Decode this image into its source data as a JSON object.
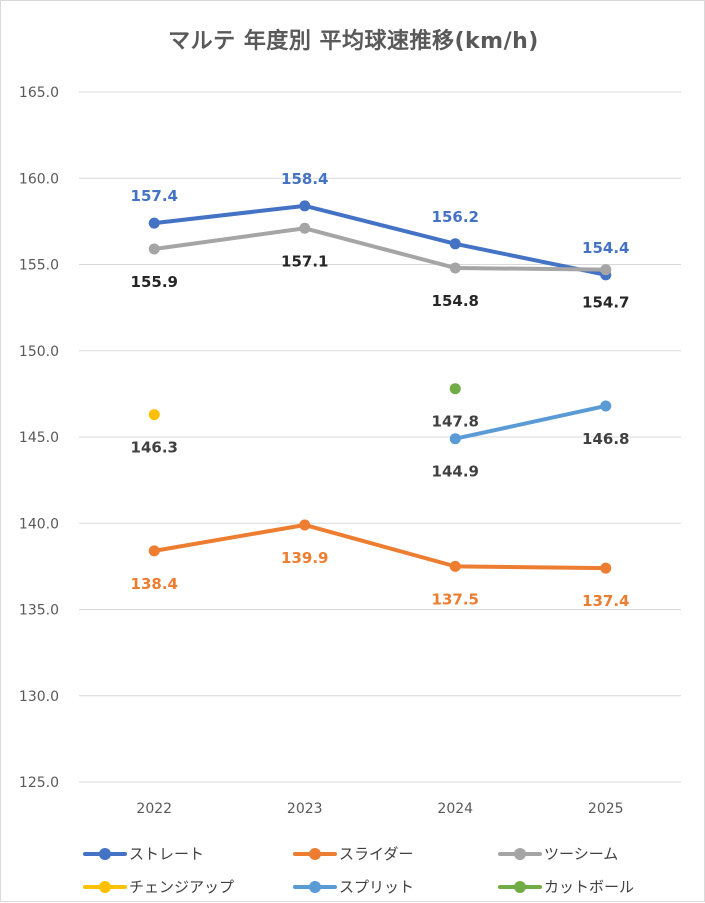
{
  "chart_data": {
    "type": "line",
    "title": "マルテ 年度別 平均球速推移(km/h)",
    "categories": [
      "2022",
      "2023",
      "2024",
      "2025"
    ],
    "ylim": [
      125.0,
      165.0
    ],
    "yticks": [
      "125.0",
      "130.0",
      "135.0",
      "140.0",
      "145.0",
      "150.0",
      "155.0",
      "160.0",
      "165.0"
    ],
    "grid": true,
    "legend_position": "bottom",
    "series": [
      {
        "name": "ストレート",
        "color": "#4472c4",
        "values": [
          157.4,
          158.4,
          156.2,
          154.4
        ],
        "labels": [
          "157.4",
          "158.4",
          "156.2",
          "154.4"
        ],
        "label_color": "#4472c4",
        "label_pos": "above"
      },
      {
        "name": "スライダー",
        "color": "#ed7d31",
        "values": [
          138.4,
          139.9,
          137.5,
          137.4
        ],
        "labels": [
          "138.4",
          "139.9",
          "137.5",
          "137.4"
        ],
        "label_color": "#ed7d31",
        "label_pos": "below"
      },
      {
        "name": "ツーシーム",
        "color": "#a5a5a5",
        "values": [
          155.9,
          157.1,
          154.8,
          154.7
        ],
        "labels": [
          "155.9",
          "157.1",
          "154.8",
          "154.7"
        ],
        "label_color": "#262626",
        "label_pos": "below"
      },
      {
        "name": "チェンジアップ",
        "color": "#ffc000",
        "values": [
          146.3,
          null,
          null,
          null
        ],
        "labels": [
          "146.3",
          "",
          "",
          ""
        ],
        "label_color": "#404040",
        "label_pos": "below"
      },
      {
        "name": "スプリット",
        "color": "#5b9bd5",
        "values": [
          null,
          null,
          144.9,
          146.8
        ],
        "labels": [
          "",
          "",
          "144.9",
          "146.8"
        ],
        "label_color": "#404040",
        "label_pos": "below"
      },
      {
        "name": "カットボール",
        "color": "#70ad47",
        "values": [
          null,
          null,
          147.8,
          null
        ],
        "labels": [
          "",
          "",
          "147.8",
          ""
        ],
        "label_color": "#404040",
        "label_pos": "below"
      }
    ]
  }
}
